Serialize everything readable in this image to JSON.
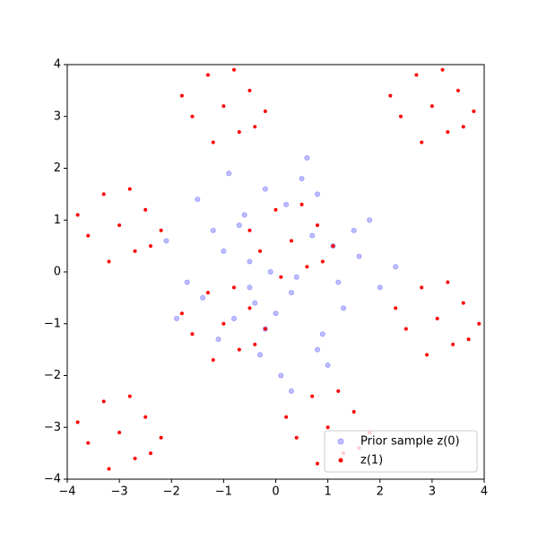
{
  "chart_data": {
    "type": "scatter",
    "series": [
      {
        "name": "Prior sample z(0)",
        "color": "#0000ff",
        "x": [
          -0.5,
          0.3,
          -1.2,
          1.1,
          0.2,
          -0.8,
          0.9,
          -0.1,
          1.6,
          -1.7,
          0.5,
          -0.3,
          0.7,
          -1.0,
          1.3,
          -0.6,
          0.1,
          -1.4,
          0.8,
          -0.2,
          2.0,
          -2.1,
          0.4,
          -0.9,
          1.0,
          -0.4,
          0.6,
          -1.1,
          1.8,
          -0.7,
          0.0,
          1.2,
          -1.5,
          0.3,
          -0.2,
          2.3,
          -1.9,
          0.8,
          -0.5,
          1.5
        ],
        "y": [
          0.2,
          -0.4,
          0.8,
          0.5,
          1.3,
          -0.9,
          -1.2,
          0.0,
          0.3,
          -0.2,
          1.8,
          -1.6,
          0.7,
          0.4,
          -0.7,
          1.1,
          -2.0,
          -0.5,
          1.5,
          -1.1,
          -0.3,
          0.6,
          -0.1,
          1.9,
          -1.8,
          -0.6,
          2.2,
          -1.3,
          1.0,
          0.9,
          -0.8,
          -0.2,
          1.4,
          -2.3,
          1.6,
          0.1,
          -0.9,
          -1.5,
          -0.3,
          0.8
        ]
      },
      {
        "name": "z(1)",
        "color": "#ff0000",
        "x": [
          -1,
          -0.5,
          -1.6,
          -0.7,
          -1.3,
          -0.2,
          -1.8,
          -0.8,
          -1.2,
          -0.4,
          3,
          3.5,
          2.4,
          3.3,
          2.7,
          3.8,
          2.2,
          3.2,
          2.8,
          3.6,
          -3,
          -2.5,
          -3.6,
          -2.7,
          -3.3,
          -2.2,
          -3.8,
          -2.8,
          -3.2,
          -2.4,
          3.1,
          3.6,
          2.5,
          3.4,
          2.8,
          3.9,
          2.3,
          3.3,
          2.9,
          3.7,
          -3,
          -2.5,
          -3.6,
          -2.7,
          -3.3,
          -2.2,
          -3.8,
          -2.8,
          -3.2,
          -2.4,
          1,
          1.5,
          0.4,
          1.3,
          0.7,
          1.8,
          0.2,
          1.2,
          0.8,
          1.6,
          0.3,
          0.8,
          -0.3,
          0.6,
          0,
          1.1,
          -0.5,
          0.5,
          0.1,
          0.9,
          -1,
          -0.5,
          -1.6,
          -0.7,
          -1.3,
          -0.2,
          -1.8,
          -0.8,
          -1.2,
          -0.4
        ],
        "y": [
          3.2,
          3.5,
          3.0,
          2.7,
          3.8,
          3.1,
          3.4,
          3.9,
          2.5,
          2.8,
          3.2,
          3.5,
          3.0,
          2.7,
          3.8,
          3.1,
          3.4,
          3.9,
          2.5,
          2.8,
          0.9,
          1.2,
          0.7,
          0.4,
          1.5,
          0.8,
          1.1,
          1.6,
          0.2,
          0.5,
          -0.9,
          -0.6,
          -1.1,
          -1.4,
          -0.3,
          -1.0,
          -0.7,
          -0.2,
          -1.6,
          -1.3,
          -3.1,
          -2.8,
          -3.3,
          -3.6,
          -2.5,
          -3.2,
          -2.9,
          -2.4,
          -3.8,
          -3.5,
          -3,
          -2.7,
          -3.2,
          -3.5,
          -2.4,
          -3.1,
          -2.8,
          -2.3,
          -3.7,
          -3.4,
          0.6,
          0.9,
          0.4,
          0.1,
          1.2,
          0.5,
          0.8,
          1.3,
          -0.1,
          0.2,
          -1,
          -0.7,
          -1.2,
          -1.5,
          -0.4,
          -1.1,
          -0.8,
          -0.3,
          -1.7,
          -1.4
        ]
      }
    ],
    "xlim": [
      -4,
      4
    ],
    "ylim": [
      -4,
      4
    ],
    "xticks": [
      {
        "value": -4,
        "label": "−4"
      },
      {
        "value": -3,
        "label": "−3"
      },
      {
        "value": -2,
        "label": "−2"
      },
      {
        "value": -1,
        "label": "−1"
      },
      0,
      1,
      2,
      3,
      4
    ],
    "yticks": [
      {
        "value": -4,
        "label": "−4"
      },
      {
        "value": -3,
        "label": "−3"
      },
      {
        "value": -2,
        "label": "−2"
      },
      {
        "value": -1,
        "label": "−1"
      },
      0,
      1,
      2,
      3,
      4
    ],
    "grid": false,
    "legend": "lower right"
  }
}
